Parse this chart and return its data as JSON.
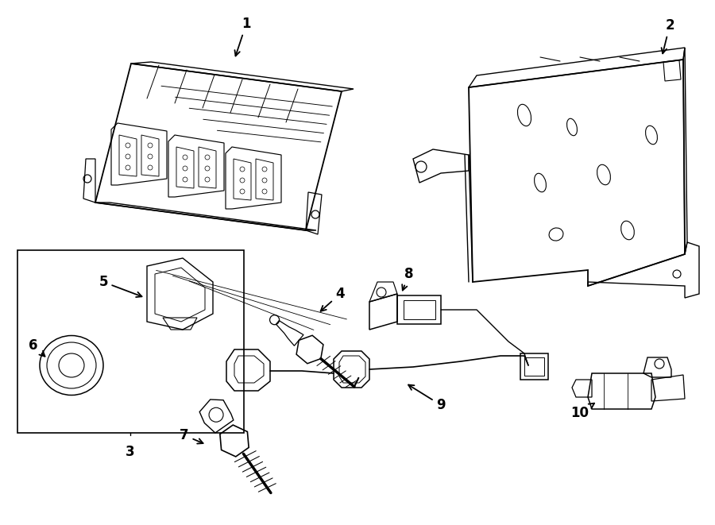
{
  "bg": "#ffffff",
  "fg": "#000000",
  "fig_w": 9.0,
  "fig_h": 6.61,
  "dpi": 100,
  "lw": 1.0
}
